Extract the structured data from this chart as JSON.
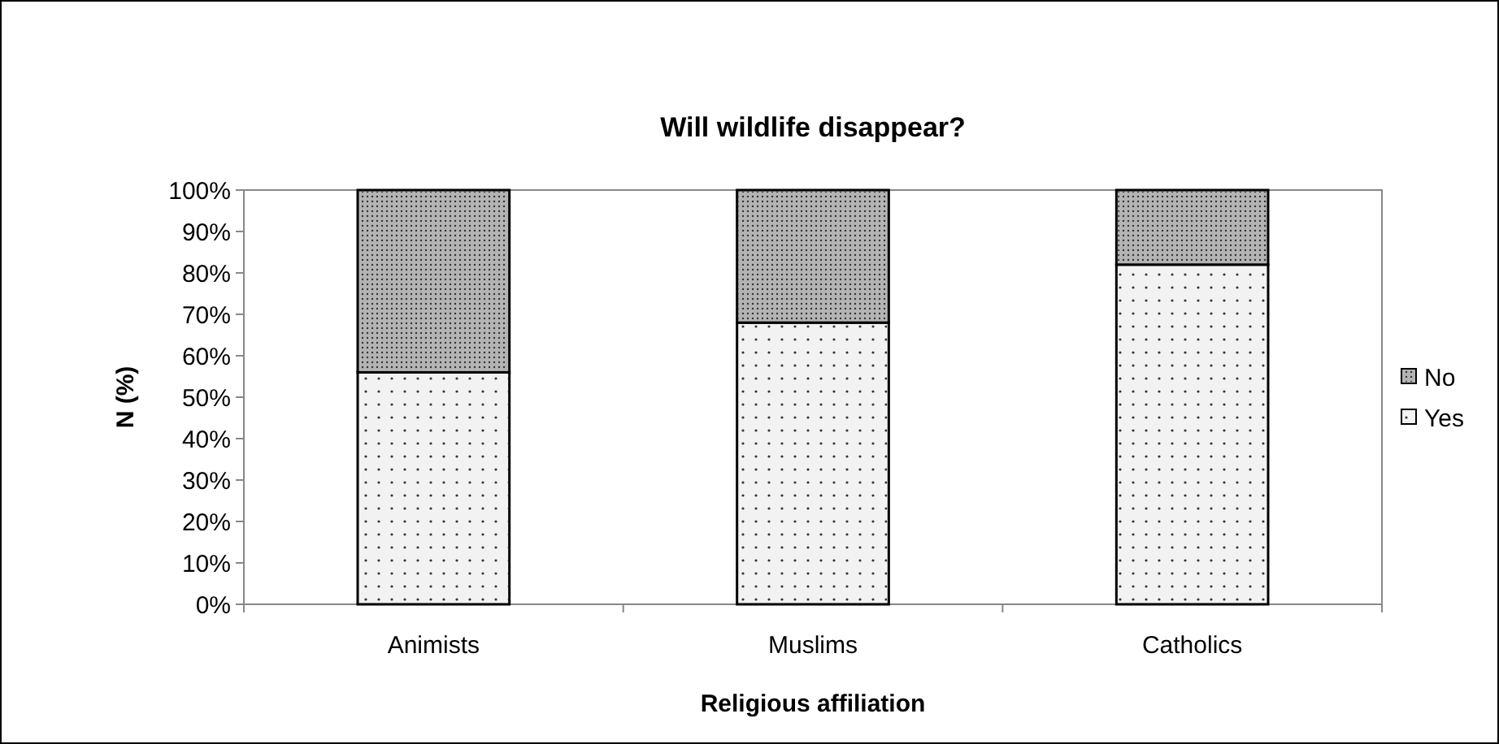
{
  "chart_data": {
    "type": "bar",
    "title": "Will wildlife disappear?",
    "xlabel": "Religious affiliation",
    "ylabel": "N (%)",
    "categories": [
      "Animists",
      "Muslims",
      "Catholics"
    ],
    "stacked": true,
    "series": [
      {
        "name": "Yes",
        "color": "#f2f2f2",
        "values": [
          56,
          68,
          82
        ]
      },
      {
        "name": "No",
        "color": "#b4b4b4",
        "values": [
          44,
          32,
          18
        ]
      }
    ],
    "ylim": [
      0,
      100
    ],
    "yticks": [
      {
        "value": 0,
        "label": "0%"
      },
      {
        "value": 10,
        "label": "10%"
      },
      {
        "value": 20,
        "label": "20%"
      },
      {
        "value": 30,
        "label": "30%"
      },
      {
        "value": 40,
        "label": "40%"
      },
      {
        "value": 50,
        "label": "50%"
      },
      {
        "value": 60,
        "label": "60%"
      },
      {
        "value": 70,
        "label": "70%"
      },
      {
        "value": 80,
        "label": "80%"
      },
      {
        "value": 90,
        "label": "90%"
      },
      {
        "value": 100,
        "label": "100%"
      }
    ],
    "legend": "right",
    "grid": false
  }
}
